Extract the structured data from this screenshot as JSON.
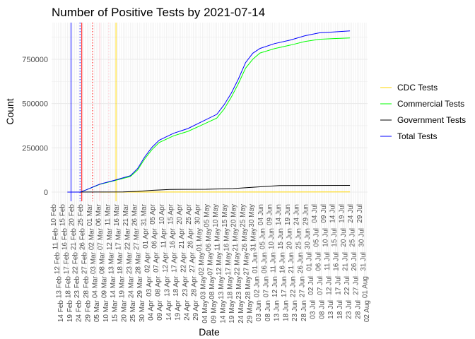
{
  "chart_data": {
    "type": "line",
    "title": "Number of Positive Tests by  2021-07-14",
    "xlabel": "Date",
    "ylabel": "Count",
    "x_ticks": {
      "start": "2020-02-10",
      "end": "2020-08-02",
      "step_days": 1,
      "format": "DD Mon"
    },
    "ylim": [
      0,
      957000
    ],
    "y_ticks": [
      0,
      250000,
      500000,
      750000
    ],
    "y_tick_labels": [
      "0",
      "250000",
      "500000",
      "750000"
    ],
    "grid": true,
    "legend_placement": "right",
    "vlines": [
      {
        "date": "2020-02-20",
        "color": "#0000ff",
        "style": "solid"
      },
      {
        "date": "2020-02-25",
        "color": "#0000ff",
        "style": "dotted"
      },
      {
        "date": "2020-02-26",
        "color": "#ff0000",
        "style": "solid"
      },
      {
        "date": "2020-03-03",
        "color": "#ff0000",
        "style": "dotted"
      },
      {
        "date": "2020-03-07",
        "color": "#ffc0cb",
        "style": "solid"
      },
      {
        "date": "2020-03-12",
        "color": "#ffc0cb",
        "style": "dotted"
      },
      {
        "date": "2020-03-16",
        "color": "#ffd700",
        "style": "solid"
      }
    ],
    "series": [
      {
        "name": "CDC Tests",
        "color": "#ffd700",
        "x": [
          "2020-03-07",
          "2020-04-15",
          "2020-05-20",
          "2020-07-24"
        ],
        "y": [
          0,
          300,
          500,
          600
        ]
      },
      {
        "name": "Commercial Tests",
        "color": "#00ff00",
        "x": [
          "2020-02-21",
          "2020-02-25",
          "2020-02-28",
          "2020-03-07",
          "2020-03-15",
          "2020-03-24",
          "2020-03-28",
          "2020-04-01",
          "2020-04-05",
          "2020-04-09",
          "2020-04-17",
          "2020-04-25",
          "2020-05-03",
          "2020-05-11",
          "2020-05-15",
          "2020-05-19",
          "2020-05-23",
          "2020-05-27",
          "2020-05-31",
          "2020-06-04",
          "2020-06-12",
          "2020-06-21",
          "2020-06-29",
          "2020-07-07",
          "2020-07-15",
          "2020-07-24"
        ],
        "y": [
          0,
          0,
          10600,
          44000,
          64000,
          88000,
          125000,
          188000,
          240000,
          280000,
          318000,
          343000,
          380000,
          418000,
          468000,
          535000,
          612000,
          700000,
          750000,
          785000,
          810000,
          830000,
          850000,
          863000,
          867000,
          870000
        ]
      },
      {
        "name": "Government Tests",
        "color": "#000000",
        "x": [
          "2020-02-18",
          "2020-03-20",
          "2020-03-28",
          "2020-04-05",
          "2020-04-15",
          "2020-05-05",
          "2020-05-20",
          "2020-06-01",
          "2020-06-15",
          "2020-07-24"
        ],
        "y": [
          0,
          1000,
          4000,
          10000,
          15000,
          16000,
          20000,
          28000,
          37000,
          38000
        ]
      },
      {
        "name": "Total Tests",
        "color": "#0000ff",
        "x": [
          "2020-02-18",
          "2020-02-25",
          "2020-02-28",
          "2020-03-07",
          "2020-03-15",
          "2020-03-24",
          "2020-03-28",
          "2020-04-01",
          "2020-04-05",
          "2020-04-09",
          "2020-04-17",
          "2020-04-25",
          "2020-05-03",
          "2020-05-11",
          "2020-05-15",
          "2020-05-19",
          "2020-05-23",
          "2020-05-27",
          "2020-05-31",
          "2020-06-04",
          "2020-06-12",
          "2020-06-21",
          "2020-06-29",
          "2020-07-07",
          "2020-07-15",
          "2020-07-24"
        ],
        "y": [
          0,
          0,
          10600,
          45000,
          66000,
          93000,
          133000,
          199000,
          253000,
          293000,
          332000,
          359000,
          399000,
          439000,
          492000,
          558000,
          638000,
          731000,
          784000,
          811000,
          838000,
          859000,
          883000,
          899000,
          904000,
          910000
        ]
      }
    ]
  }
}
